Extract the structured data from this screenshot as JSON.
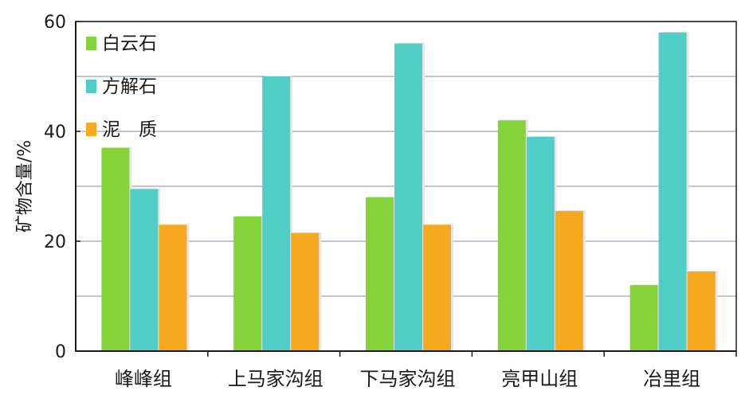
{
  "chart_data": {
    "type": "bar",
    "title": "",
    "xlabel": "",
    "ylabel": "矿物含量/%",
    "ylim": [
      0,
      60
    ],
    "yticks": [
      0,
      20,
      40,
      60
    ],
    "grid": true,
    "legend_position": "top-left",
    "categories": [
      "峰峰组",
      "上马家沟组",
      "下马家沟组",
      "亮甲山组",
      "冶里组"
    ],
    "series": [
      {
        "name": "白云石",
        "color": "#86d23a",
        "values": [
          37,
          24.5,
          28,
          42,
          12
        ]
      },
      {
        "name": "方解石",
        "color": "#52cdc6",
        "values": [
          29.5,
          50,
          56,
          39,
          58
        ]
      },
      {
        "name": "泥　质",
        "color": "#f6a91f",
        "values": [
          23,
          21.5,
          23,
          25.5,
          14.5
        ]
      }
    ]
  }
}
